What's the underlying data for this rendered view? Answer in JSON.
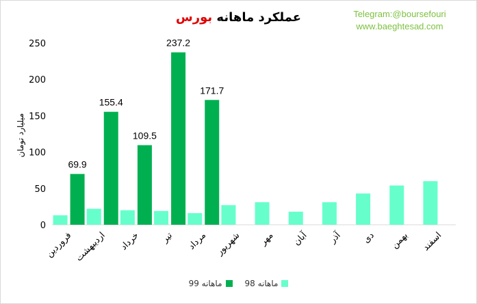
{
  "title": {
    "main": "عملکرد ماهانه",
    "accent": "بورس"
  },
  "promo": {
    "telegram": "Telegram:@boursefouri",
    "website": "www.baeghtesad.com"
  },
  "colors": {
    "series_98": "#66ffcc",
    "series_99": "#00b050",
    "title_accent": "#e00000",
    "promo": "#7cc13f"
  },
  "chart_data": {
    "type": "bar",
    "title": "عملکرد ماهانه بورس",
    "ylabel": "میلیارد تومان",
    "xlabel": "",
    "ylim": [
      0,
      250
    ],
    "yticks": [
      0,
      50,
      100,
      150,
      200,
      250
    ],
    "grid": false,
    "legend_position": "bottom",
    "categories": [
      "فروردین",
      "اردیبهشت",
      "خرداد",
      "تیر",
      "مرداد",
      "شهریور",
      "مهر",
      "آبان",
      "آذر",
      "دی",
      "بهمن",
      "اسفند"
    ],
    "series": [
      {
        "name": "ماهانه 98",
        "color": "#66ffcc",
        "values": [
          13,
          22,
          20,
          19,
          16,
          27,
          31,
          18,
          31,
          43,
          54,
          60
        ]
      },
      {
        "name": "ماهانه 99",
        "color": "#00b050",
        "values": [
          69.9,
          155.4,
          109.5,
          237.2,
          171.7,
          null,
          null,
          null,
          null,
          null,
          null,
          null
        ],
        "data_labels": [
          "69.9",
          "155.4",
          "109.5",
          "237.2",
          "171.7",
          "",
          "",
          "",
          "",
          "",
          "",
          ""
        ]
      }
    ]
  }
}
